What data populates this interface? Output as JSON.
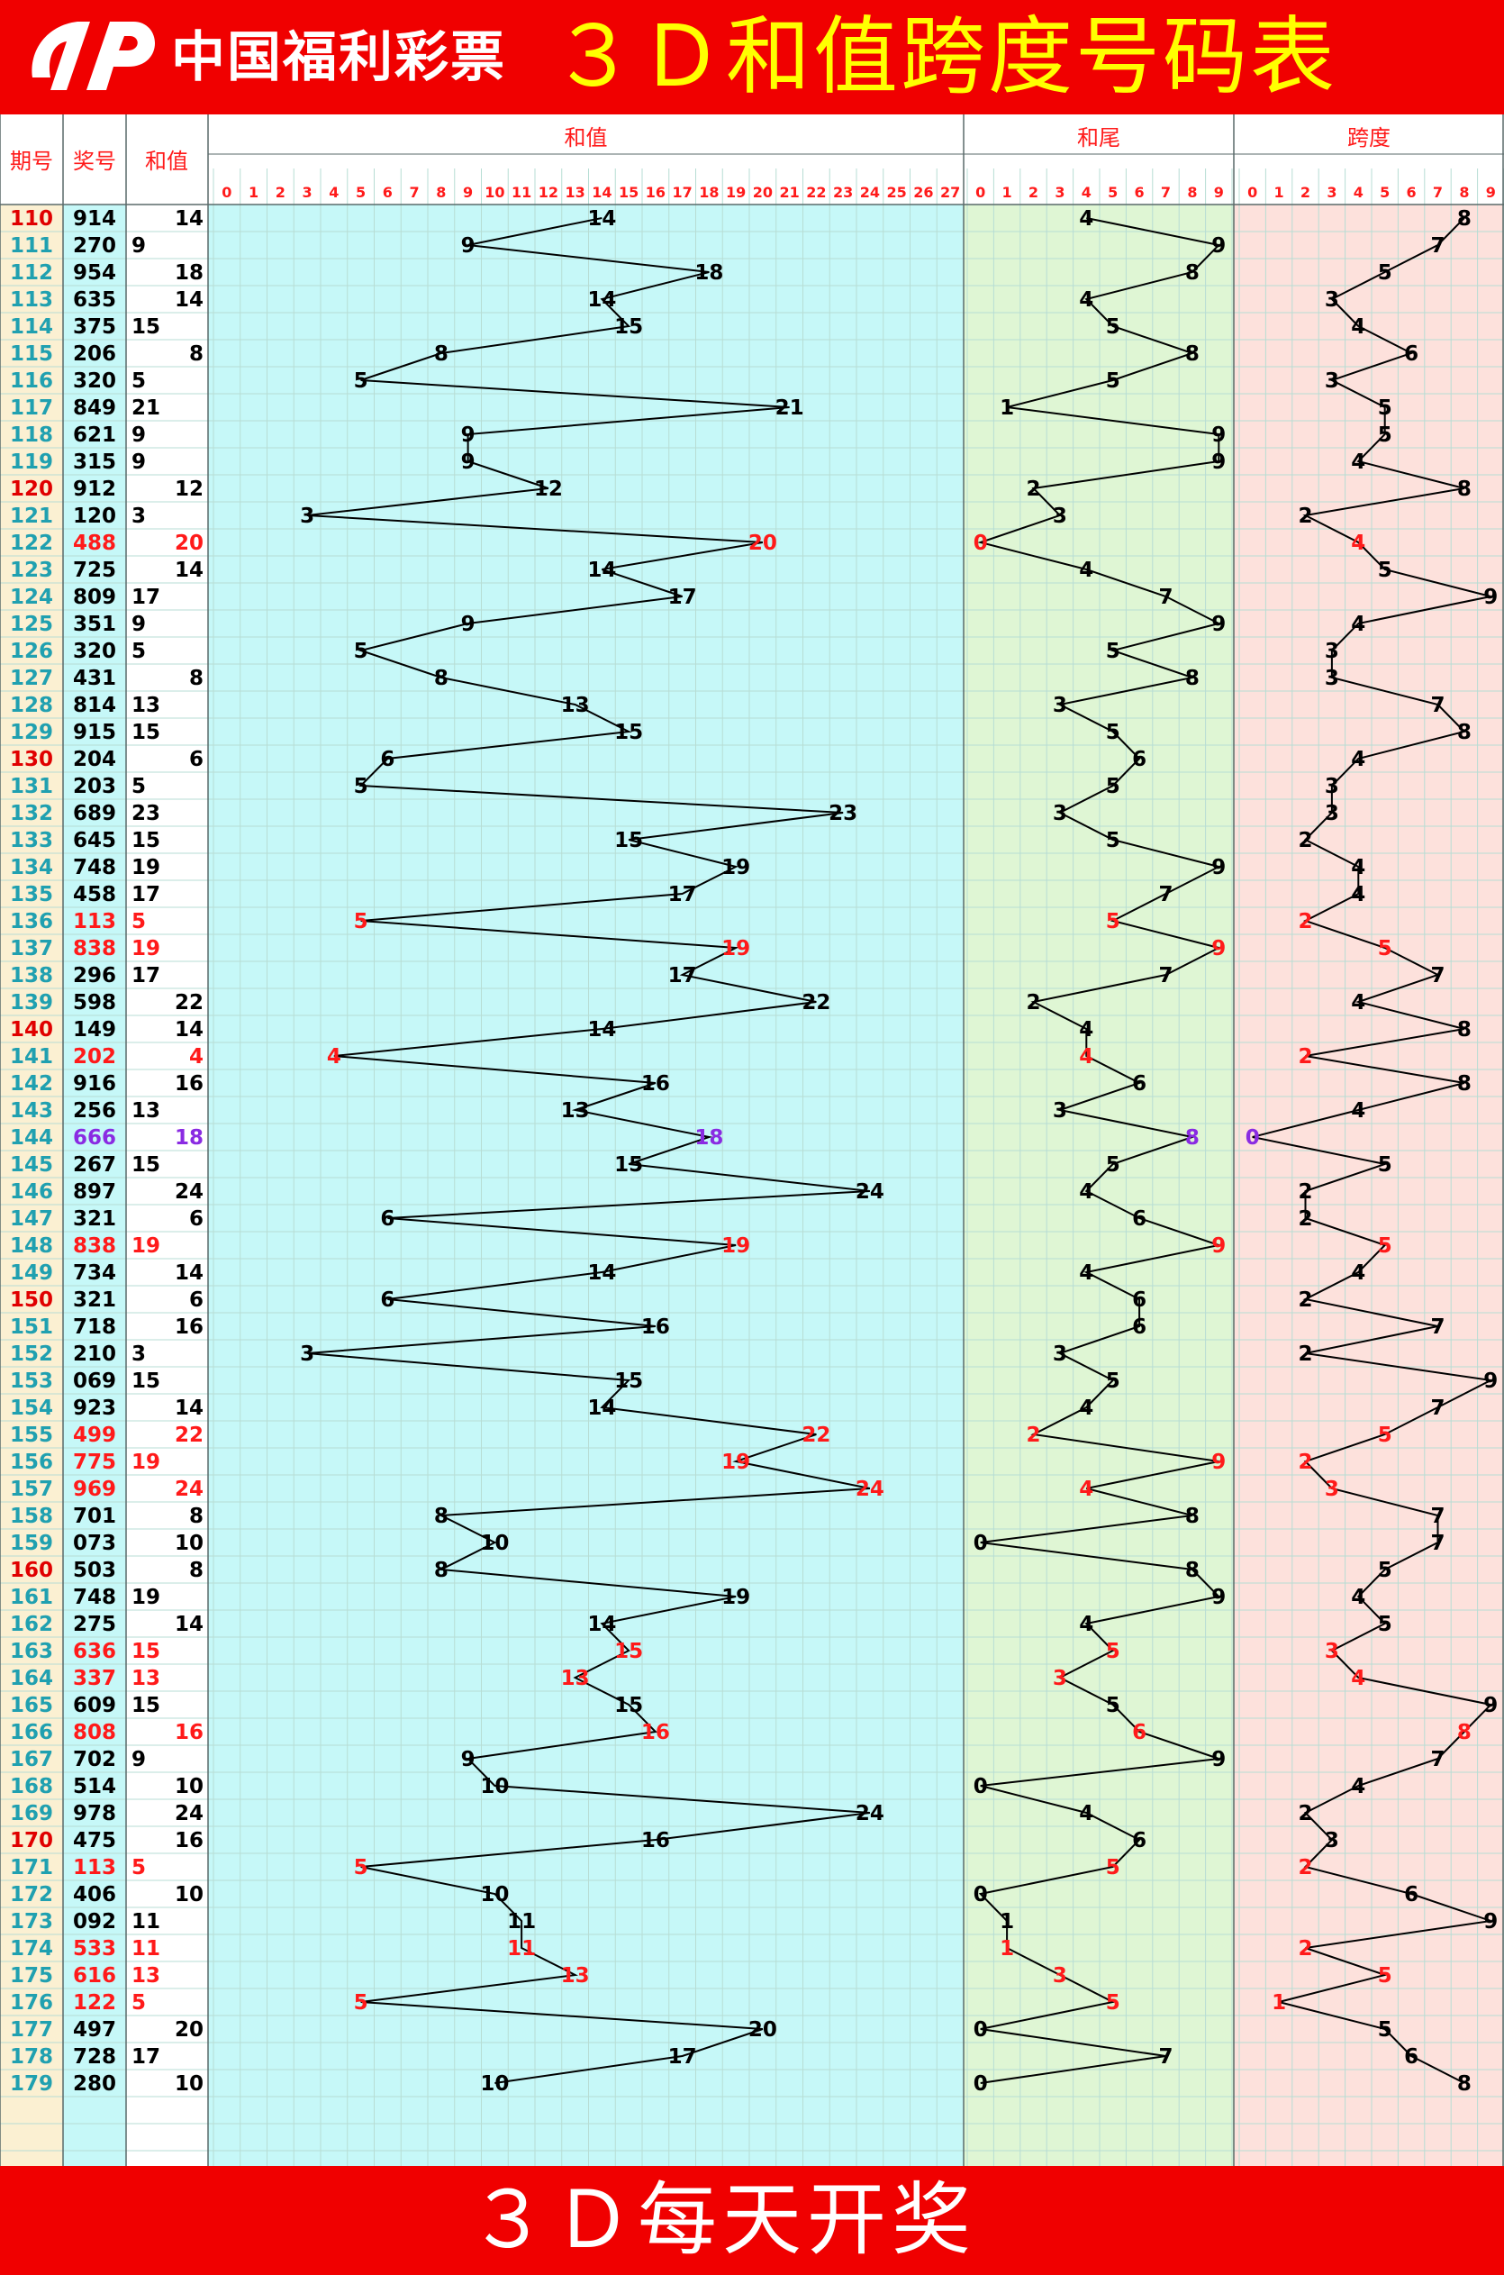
{
  "header": {
    "brand": "中国福利彩票",
    "title": "３Ｄ和值跨度号码表",
    "colors": {
      "bar": "#f00000",
      "title": "#ffff00",
      "brand": "#ffffff"
    }
  },
  "footer": {
    "text": "３Ｄ每天开奖",
    "color": "#ffffff"
  },
  "columns": {
    "period": "期号",
    "number": "奖号",
    "sum": "和值",
    "sum_chart": "和值",
    "tail_chart": "和尾",
    "span_chart": "跨度"
  },
  "logo_icon": "welfare-lottery-logo-icon",
  "colors": {
    "period_bg": "#fbf0d2",
    "number_bg": "#c6f8f8",
    "sum_zone_bg": "#c6f8f8",
    "tail_zone_bg": "#dff6d4",
    "span_zone_bg": "#fde1dc",
    "accent_red": "#ff1a1a",
    "accent_purple": "#8a2be2",
    "period_text": "#20a0b0",
    "grid_line": "#b7ddd4"
  },
  "chart_data": {
    "type": "table",
    "sum_axis": [
      "0",
      "1",
      "2",
      "3",
      "4",
      "5",
      "6",
      "7",
      "8",
      "9",
      "10",
      "11",
      "12",
      "13",
      "14",
      "15",
      "16",
      "17",
      "18",
      "19",
      "20",
      "21",
      "22",
      "23",
      "24",
      "25",
      "26",
      "27"
    ],
    "tail_axis": [
      "0",
      "1",
      "2",
      "3",
      "4",
      "5",
      "6",
      "7",
      "8",
      "9"
    ],
    "span_axis": [
      "0",
      "1",
      "2",
      "3",
      "4",
      "5",
      "6",
      "7",
      "8",
      "9"
    ],
    "rows": [
      {
        "period": "110",
        "number": "914",
        "sum": 14,
        "tail": 4,
        "span": 8,
        "period_hl": true,
        "num_hl": false,
        "sum_col": "right"
      },
      {
        "period": "111",
        "number": "270",
        "sum": 9,
        "tail": 9,
        "span": 7,
        "period_hl": false,
        "num_hl": false,
        "sum_col": "left"
      },
      {
        "period": "112",
        "number": "954",
        "sum": 18,
        "tail": 8,
        "span": 5,
        "period_hl": false,
        "num_hl": false,
        "sum_col": "right"
      },
      {
        "period": "113",
        "number": "635",
        "sum": 14,
        "tail": 4,
        "span": 3,
        "period_hl": false,
        "num_hl": false,
        "sum_col": "right"
      },
      {
        "period": "114",
        "number": "375",
        "sum": 15,
        "tail": 5,
        "span": 4,
        "period_hl": false,
        "num_hl": false,
        "sum_col": "left"
      },
      {
        "period": "115",
        "number": "206",
        "sum": 8,
        "tail": 8,
        "span": 6,
        "period_hl": false,
        "num_hl": false,
        "sum_col": "right"
      },
      {
        "period": "116",
        "number": "320",
        "sum": 5,
        "tail": 5,
        "span": 3,
        "period_hl": false,
        "num_hl": false,
        "sum_col": "left"
      },
      {
        "period": "117",
        "number": "849",
        "sum": 21,
        "tail": 1,
        "span": 5,
        "period_hl": false,
        "num_hl": false,
        "sum_col": "left"
      },
      {
        "period": "118",
        "number": "621",
        "sum": 9,
        "tail": 9,
        "span": 5,
        "period_hl": false,
        "num_hl": false,
        "sum_col": "left"
      },
      {
        "period": "119",
        "number": "315",
        "sum": 9,
        "tail": 9,
        "span": 4,
        "period_hl": false,
        "num_hl": false,
        "sum_col": "left"
      },
      {
        "period": "120",
        "number": "912",
        "sum": 12,
        "tail": 2,
        "span": 8,
        "period_hl": true,
        "num_hl": false,
        "sum_col": "right"
      },
      {
        "period": "121",
        "number": "120",
        "sum": 3,
        "tail": 3,
        "span": 2,
        "period_hl": false,
        "num_hl": false,
        "sum_col": "left"
      },
      {
        "period": "122",
        "number": "488",
        "sum": 20,
        "tail": 0,
        "span": 4,
        "period_hl": false,
        "num_hl": true,
        "sum_col": "right"
      },
      {
        "period": "123",
        "number": "725",
        "sum": 14,
        "tail": 4,
        "span": 5,
        "period_hl": false,
        "num_hl": false,
        "sum_col": "right"
      },
      {
        "period": "124",
        "number": "809",
        "sum": 17,
        "tail": 7,
        "span": 9,
        "period_hl": false,
        "num_hl": false,
        "sum_col": "left"
      },
      {
        "period": "125",
        "number": "351",
        "sum": 9,
        "tail": 9,
        "span": 4,
        "period_hl": false,
        "num_hl": false,
        "sum_col": "left"
      },
      {
        "period": "126",
        "number": "320",
        "sum": 5,
        "tail": 5,
        "span": 3,
        "period_hl": false,
        "num_hl": false,
        "sum_col": "left"
      },
      {
        "period": "127",
        "number": "431",
        "sum": 8,
        "tail": 8,
        "span": 3,
        "period_hl": false,
        "num_hl": false,
        "sum_col": "right"
      },
      {
        "period": "128",
        "number": "814",
        "sum": 13,
        "tail": 3,
        "span": 7,
        "period_hl": false,
        "num_hl": false,
        "sum_col": "left"
      },
      {
        "period": "129",
        "number": "915",
        "sum": 15,
        "tail": 5,
        "span": 8,
        "period_hl": false,
        "num_hl": false,
        "sum_col": "left"
      },
      {
        "period": "130",
        "number": "204",
        "sum": 6,
        "tail": 6,
        "span": 4,
        "period_hl": true,
        "num_hl": false,
        "sum_col": "right"
      },
      {
        "period": "131",
        "number": "203",
        "sum": 5,
        "tail": 5,
        "span": 3,
        "period_hl": false,
        "num_hl": false,
        "sum_col": "left"
      },
      {
        "period": "132",
        "number": "689",
        "sum": 23,
        "tail": 3,
        "span": 3,
        "period_hl": false,
        "num_hl": false,
        "sum_col": "left"
      },
      {
        "period": "133",
        "number": "645",
        "sum": 15,
        "tail": 5,
        "span": 2,
        "period_hl": false,
        "num_hl": false,
        "sum_col": "left"
      },
      {
        "period": "134",
        "number": "748",
        "sum": 19,
        "tail": 9,
        "span": 4,
        "period_hl": false,
        "num_hl": false,
        "sum_col": "left"
      },
      {
        "period": "135",
        "number": "458",
        "sum": 17,
        "tail": 7,
        "span": 4,
        "period_hl": false,
        "num_hl": false,
        "sum_col": "left"
      },
      {
        "period": "136",
        "number": "113",
        "sum": 5,
        "tail": 5,
        "span": 2,
        "period_hl": false,
        "num_hl": true,
        "sum_col": "left"
      },
      {
        "period": "137",
        "number": "838",
        "sum": 19,
        "tail": 9,
        "span": 5,
        "period_hl": false,
        "num_hl": true,
        "sum_col": "left"
      },
      {
        "period": "138",
        "number": "296",
        "sum": 17,
        "tail": 7,
        "span": 7,
        "period_hl": false,
        "num_hl": false,
        "sum_col": "left"
      },
      {
        "period": "139",
        "number": "598",
        "sum": 22,
        "tail": 2,
        "span": 4,
        "period_hl": false,
        "num_hl": false,
        "sum_col": "right"
      },
      {
        "period": "140",
        "number": "149",
        "sum": 14,
        "tail": 4,
        "span": 8,
        "period_hl": true,
        "num_hl": false,
        "sum_col": "right"
      },
      {
        "period": "141",
        "number": "202",
        "sum": 4,
        "tail": 4,
        "span": 2,
        "period_hl": false,
        "num_hl": true,
        "sum_col": "right"
      },
      {
        "period": "142",
        "number": "916",
        "sum": 16,
        "tail": 6,
        "span": 8,
        "period_hl": false,
        "num_hl": false,
        "sum_col": "right"
      },
      {
        "period": "143",
        "number": "256",
        "sum": 13,
        "tail": 3,
        "span": 4,
        "period_hl": false,
        "num_hl": false,
        "sum_col": "left"
      },
      {
        "period": "144",
        "number": "666",
        "sum": 18,
        "tail": 8,
        "span": 0,
        "period_hl": false,
        "num_hl": true,
        "num_purple": true,
        "sum_col": "right"
      },
      {
        "period": "145",
        "number": "267",
        "sum": 15,
        "tail": 5,
        "span": 5,
        "period_hl": false,
        "num_hl": false,
        "sum_col": "left"
      },
      {
        "period": "146",
        "number": "897",
        "sum": 24,
        "tail": 4,
        "span": 2,
        "period_hl": false,
        "num_hl": false,
        "sum_col": "right"
      },
      {
        "period": "147",
        "number": "321",
        "sum": 6,
        "tail": 6,
        "span": 2,
        "period_hl": false,
        "num_hl": false,
        "sum_col": "right"
      },
      {
        "period": "148",
        "number": "838",
        "sum": 19,
        "tail": 9,
        "span": 5,
        "period_hl": false,
        "num_hl": true,
        "sum_col": "left"
      },
      {
        "period": "149",
        "number": "734",
        "sum": 14,
        "tail": 4,
        "span": 4,
        "period_hl": false,
        "num_hl": false,
        "sum_col": "right"
      },
      {
        "period": "150",
        "number": "321",
        "sum": 6,
        "tail": 6,
        "span": 2,
        "period_hl": true,
        "num_hl": false,
        "sum_col": "right"
      },
      {
        "period": "151",
        "number": "718",
        "sum": 16,
        "tail": 6,
        "span": 7,
        "period_hl": false,
        "num_hl": false,
        "sum_col": "right"
      },
      {
        "period": "152",
        "number": "210",
        "sum": 3,
        "tail": 3,
        "span": 2,
        "period_hl": false,
        "num_hl": false,
        "sum_col": "left"
      },
      {
        "period": "153",
        "number": "069",
        "sum": 15,
        "tail": 5,
        "span": 9,
        "period_hl": false,
        "num_hl": false,
        "sum_col": "left"
      },
      {
        "period": "154",
        "number": "923",
        "sum": 14,
        "tail": 4,
        "span": 7,
        "period_hl": false,
        "num_hl": false,
        "sum_col": "right"
      },
      {
        "period": "155",
        "number": "499",
        "sum": 22,
        "tail": 2,
        "span": 5,
        "period_hl": false,
        "num_hl": true,
        "sum_col": "right"
      },
      {
        "period": "156",
        "number": "775",
        "sum": 19,
        "tail": 9,
        "span": 2,
        "period_hl": false,
        "num_hl": true,
        "sum_col": "left"
      },
      {
        "period": "157",
        "number": "969",
        "sum": 24,
        "tail": 4,
        "span": 3,
        "period_hl": false,
        "num_hl": true,
        "sum_col": "right"
      },
      {
        "period": "158",
        "number": "701",
        "sum": 8,
        "tail": 8,
        "span": 7,
        "period_hl": false,
        "num_hl": false,
        "sum_col": "right"
      },
      {
        "period": "159",
        "number": "073",
        "sum": 10,
        "tail": 0,
        "span": 7,
        "period_hl": false,
        "num_hl": false,
        "sum_col": "right"
      },
      {
        "period": "160",
        "number": "503",
        "sum": 8,
        "tail": 8,
        "span": 5,
        "period_hl": true,
        "num_hl": false,
        "sum_col": "right"
      },
      {
        "period": "161",
        "number": "748",
        "sum": 19,
        "tail": 9,
        "span": 4,
        "period_hl": false,
        "num_hl": false,
        "sum_col": "left"
      },
      {
        "period": "162",
        "number": "275",
        "sum": 14,
        "tail": 4,
        "span": 5,
        "period_hl": false,
        "num_hl": false,
        "sum_col": "right"
      },
      {
        "period": "163",
        "number": "636",
        "sum": 15,
        "tail": 5,
        "span": 3,
        "period_hl": false,
        "num_hl": true,
        "sum_col": "left"
      },
      {
        "period": "164",
        "number": "337",
        "sum": 13,
        "tail": 3,
        "span": 4,
        "period_hl": false,
        "num_hl": true,
        "sum_col": "left"
      },
      {
        "period": "165",
        "number": "609",
        "sum": 15,
        "tail": 5,
        "span": 9,
        "period_hl": false,
        "num_hl": false,
        "sum_col": "left"
      },
      {
        "period": "166",
        "number": "808",
        "sum": 16,
        "tail": 6,
        "span": 8,
        "period_hl": false,
        "num_hl": true,
        "sum_col": "right"
      },
      {
        "period": "167",
        "number": "702",
        "sum": 9,
        "tail": 9,
        "span": 7,
        "period_hl": false,
        "num_hl": false,
        "sum_col": "left"
      },
      {
        "period": "168",
        "number": "514",
        "sum": 10,
        "tail": 0,
        "span": 4,
        "period_hl": false,
        "num_hl": false,
        "sum_col": "right"
      },
      {
        "period": "169",
        "number": "978",
        "sum": 24,
        "tail": 4,
        "span": 2,
        "period_hl": false,
        "num_hl": false,
        "sum_col": "right"
      },
      {
        "period": "170",
        "number": "475",
        "sum": 16,
        "tail": 6,
        "span": 3,
        "period_hl": true,
        "num_hl": false,
        "sum_col": "right"
      },
      {
        "period": "171",
        "number": "113",
        "sum": 5,
        "tail": 5,
        "span": 2,
        "period_hl": false,
        "num_hl": true,
        "sum_col": "left"
      },
      {
        "period": "172",
        "number": "406",
        "sum": 10,
        "tail": 0,
        "span": 6,
        "period_hl": false,
        "num_hl": false,
        "sum_col": "right"
      },
      {
        "period": "173",
        "number": "092",
        "sum": 11,
        "tail": 1,
        "span": 9,
        "period_hl": false,
        "num_hl": false,
        "sum_col": "left"
      },
      {
        "period": "174",
        "number": "533",
        "sum": 11,
        "tail": 1,
        "span": 2,
        "period_hl": false,
        "num_hl": true,
        "sum_col": "left"
      },
      {
        "period": "175",
        "number": "616",
        "sum": 13,
        "tail": 3,
        "span": 5,
        "period_hl": false,
        "num_hl": true,
        "sum_col": "left"
      },
      {
        "period": "176",
        "number": "122",
        "sum": 5,
        "tail": 5,
        "span": 1,
        "period_hl": false,
        "num_hl": true,
        "sum_col": "left"
      },
      {
        "period": "177",
        "number": "497",
        "sum": 20,
        "tail": 0,
        "span": 5,
        "period_hl": false,
        "num_hl": false,
        "sum_col": "right"
      },
      {
        "period": "178",
        "number": "728",
        "sum": 17,
        "tail": 7,
        "span": 6,
        "period_hl": false,
        "num_hl": false,
        "sum_col": "left"
      },
      {
        "period": "179",
        "number": "280",
        "sum": 10,
        "tail": 0,
        "span": 8,
        "period_hl": false,
        "num_hl": false,
        "sum_col": "right"
      }
    ]
  }
}
